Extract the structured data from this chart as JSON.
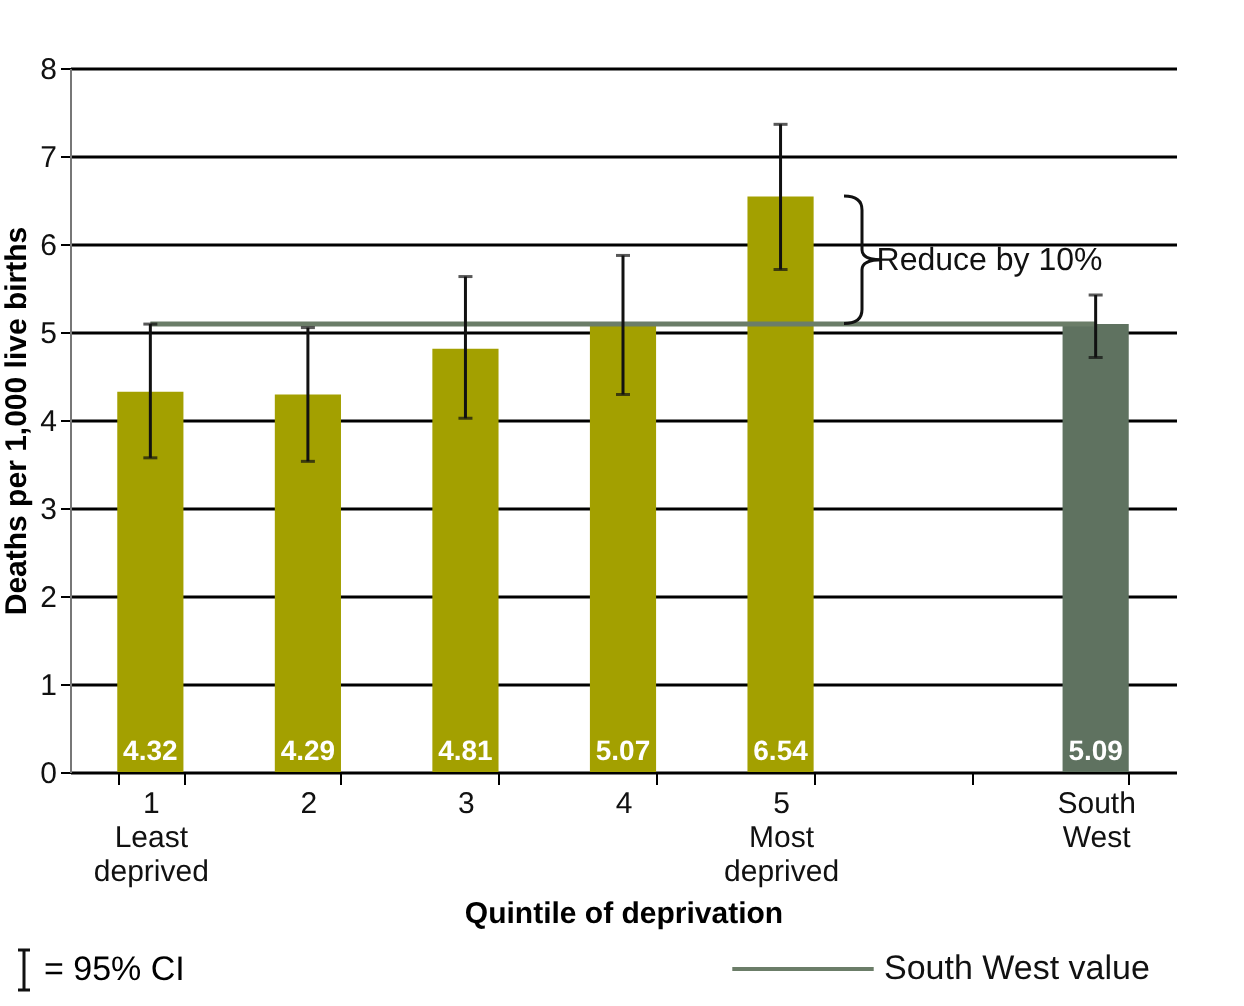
{
  "chart_data": {
    "type": "bar",
    "xlabel": "Quintile of deprivation",
    "ylabel": "Deaths per 1,000 live births",
    "categories": [
      "1\nLeast\ndeprived",
      "2",
      "3",
      "4",
      "5\nMost\ndeprived",
      null,
      "South\nWest"
    ],
    "values": [
      4.32,
      4.29,
      4.81,
      5.07,
      6.54,
      null,
      5.09
    ],
    "colors": [
      "#a3a000",
      "#a3a000",
      "#a3a000",
      "#a3a000",
      "#a3a000",
      null,
      "#5f7260"
    ],
    "errors": [
      [
        3.57,
        5.09
      ],
      [
        3.53,
        5.05
      ],
      [
        4.02,
        5.63
      ],
      [
        4.29,
        5.87
      ],
      [
        5.71,
        7.36
      ],
      null,
      [
        4.71,
        5.42
      ]
    ],
    "data_labels": true,
    "ylim": [
      0,
      8
    ],
    "yticks": [
      0,
      1,
      2,
      3,
      4,
      5,
      6,
      7,
      8
    ],
    "grid": "y",
    "ref_lines": [
      {
        "axis": "y",
        "value": 5.09,
        "label": "South West value",
        "color": "#6b7d68"
      }
    ],
    "annotations": [
      "Reduce by 10%",
      "= 95% CI"
    ]
  }
}
